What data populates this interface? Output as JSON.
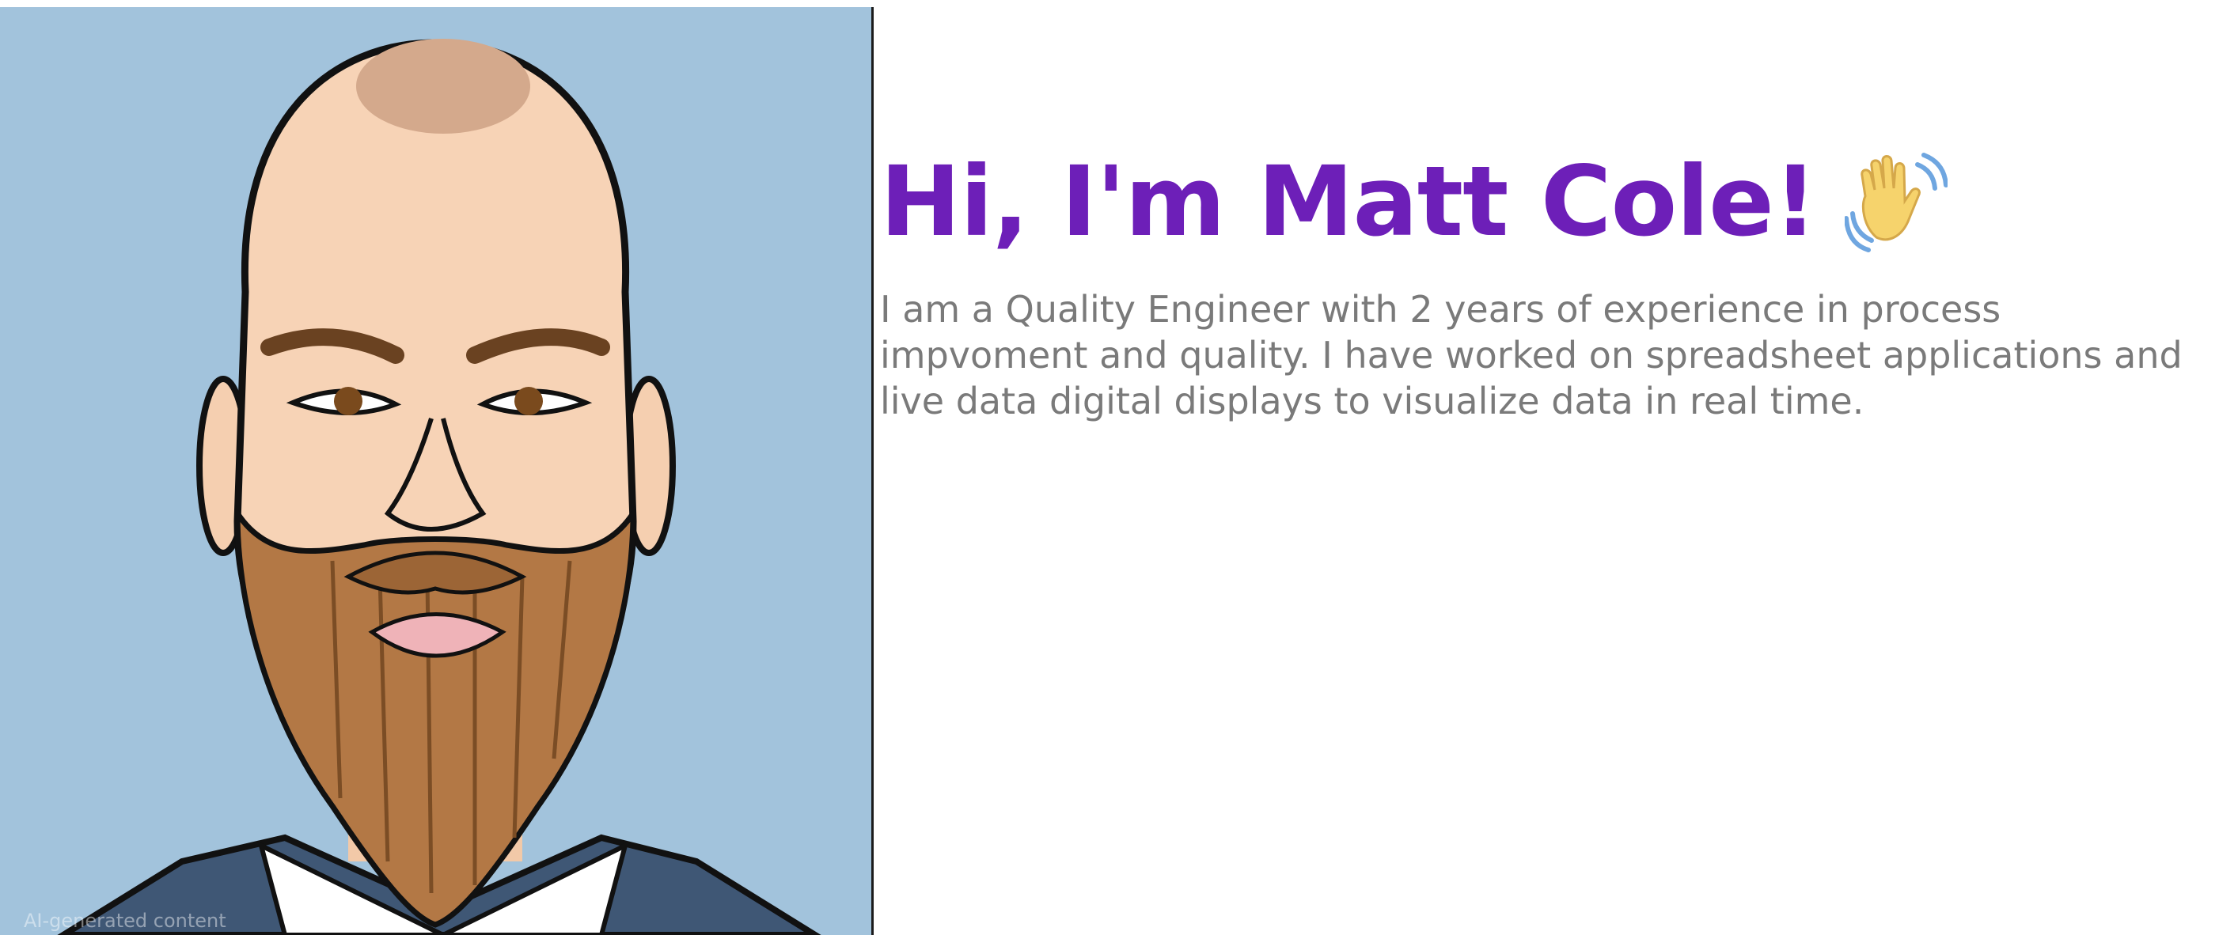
{
  "portrait": {
    "alt": "Cartoon portrait of Matt Cole",
    "caption": "AI-generated content"
  },
  "intro": {
    "heading": "Hi, I'm Matt Cole!",
    "wave_icon": "waving-hand-icon",
    "bio": "I am a Quality Engineer with 2 years of experience in process impvoment and quality. I have worked on spreadsheet applications and live data digital displays to visualize data in real time."
  },
  "colors": {
    "heading": "#6d1fb8",
    "bio_text": "#7a7a7a",
    "portrait_background": "#a2c3dc"
  }
}
